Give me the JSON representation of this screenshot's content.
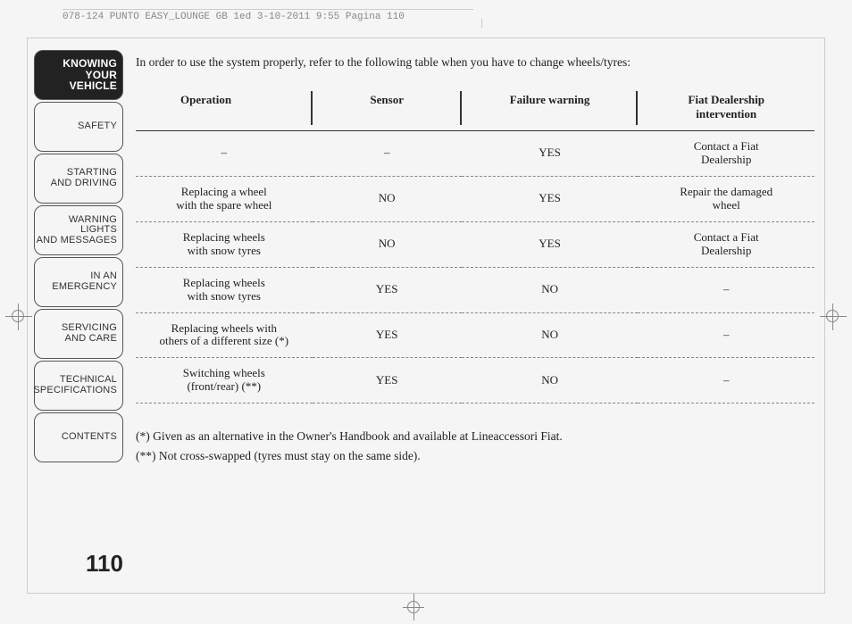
{
  "printHeader": "078-124 PUNTO EASY_LOUNGE GB 1ed  3-10-2011  9:55  Pagina 110",
  "sidebar": {
    "items": [
      {
        "l1": "KNOWING",
        "l2": "YOUR",
        "l3": "VEHICLE",
        "active": true
      },
      {
        "l1": "",
        "l2": "SAFETY",
        "l3": "",
        "active": false
      },
      {
        "l1": "",
        "l2": "STARTING",
        "l3": "AND DRIVING",
        "active": false
      },
      {
        "l1": "",
        "l2": "WARNING LIGHTS",
        "l3": "AND MESSAGES",
        "active": false
      },
      {
        "l1": "",
        "l2": "IN AN",
        "l3": "EMERGENCY",
        "active": false
      },
      {
        "l1": "",
        "l2": "SERVICING",
        "l3": "AND CARE",
        "active": false
      },
      {
        "l1": "",
        "l2": "TECHNICAL",
        "l3": "SPECIFICATIONS",
        "active": false
      },
      {
        "l1": "",
        "l2": "",
        "l3": "CONTENTS",
        "active": false
      }
    ]
  },
  "pageNumber": "110",
  "introText": "In order to use the system properly, refer to the following table when you have to change wheels/tyres:",
  "table": {
    "headers": {
      "c1": "Operation",
      "c2": "Sensor",
      "c3": "Failure warning",
      "c4a": "Fiat Dealership",
      "c4b": "intervention"
    },
    "rows": [
      {
        "op1": "–",
        "op2": "",
        "se": "–",
        "fw": "YES",
        "in1": "Contact a Fiat",
        "in2": "Dealership"
      },
      {
        "op1": "Replacing a wheel",
        "op2": "with the spare wheel",
        "se": "NO",
        "fw": "YES",
        "in1": "Repair the damaged",
        "in2": "wheel"
      },
      {
        "op1": "Replacing wheels",
        "op2": "with snow tyres",
        "se": "NO",
        "fw": "YES",
        "in1": "Contact a Fiat",
        "in2": "Dealership"
      },
      {
        "op1": "Replacing wheels",
        "op2": "with snow tyres",
        "se": "YES",
        "fw": "NO",
        "in1": "–",
        "in2": ""
      },
      {
        "op1": "Replacing wheels with",
        "op2": "others of a different size (*)",
        "se": "YES",
        "fw": "NO",
        "in1": "–",
        "in2": ""
      },
      {
        "op1": "Switching wheels",
        "op2": "(front/rear) (**)",
        "se": "YES",
        "fw": "NO",
        "in1": "–",
        "in2": ""
      }
    ]
  },
  "footnotes": {
    "f1": "(*) Given as an alternative in the Owner's Handbook and available at Lineaccessori Fiat.",
    "f2": "(**) Not cross-swapped (tyres must stay on the same side)."
  },
  "colors": {
    "pageBg": "#f5f5f5",
    "text": "#222222",
    "tabActiveBg": "#222222",
    "tabBorder": "#555555",
    "dashBorder": "#888888",
    "cropMark": "#888888"
  }
}
